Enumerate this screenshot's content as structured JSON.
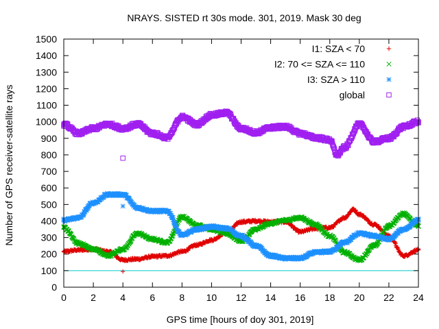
{
  "chart_data": {
    "type": "scatter",
    "title": "NRAYS. SISTED rt 30s mode. 301, 2019. Mask 30 deg",
    "xlabel": "GPS time [hours of doy 301, 2019]",
    "ylabel": "Number of GPS receiver-satellite rays",
    "xlim": [
      0,
      24
    ],
    "ylim": [
      0,
      1500
    ],
    "x_ticks": [
      "0",
      "2",
      "4",
      "6",
      "8",
      "10",
      "12",
      "14",
      "16",
      "18",
      "20",
      "22",
      "24"
    ],
    "y_ticks": [
      "0",
      "100",
      "200",
      "300",
      "400",
      "500",
      "600",
      "700",
      "800",
      "900",
      "1000",
      "1100",
      "1200",
      "1300",
      "1400",
      "1500"
    ],
    "legend_position": "top-right",
    "threshold_line": {
      "y": 100,
      "color": "#00c8c8"
    },
    "series": [
      {
        "name": "I1: SZA < 70",
        "marker": "plus",
        "color": "#e00000",
        "x": [
          0,
          1,
          2,
          3,
          4,
          5,
          6,
          7,
          8,
          9,
          10,
          11,
          12,
          13,
          14,
          15,
          16,
          17,
          18,
          19,
          19.6,
          20,
          21,
          22,
          23,
          24
        ],
        "y": [
          215,
          225,
          230,
          215,
          165,
          170,
          185,
          190,
          215,
          255,
          285,
          330,
          395,
          400,
          395,
          395,
          335,
          355,
          360,
          420,
          470,
          440,
          380,
          310,
          190,
          225
        ]
      },
      {
        "name": "I2: 70 <= SZA <= 110",
        "marker": "cross",
        "color": "#00b000",
        "x": [
          0,
          1,
          2,
          3,
          4,
          5,
          6,
          7,
          8,
          9,
          10,
          11,
          12,
          13,
          14,
          15,
          16,
          17,
          18,
          19,
          20,
          21,
          22,
          23,
          24
        ],
        "y": [
          360,
          265,
          230,
          190,
          230,
          325,
          290,
          270,
          425,
          375,
          350,
          325,
          280,
          350,
          385,
          405,
          420,
          380,
          310,
          210,
          165,
          250,
          370,
          445,
          370
        ]
      },
      {
        "name": "I3: SZA > 110",
        "marker": "star",
        "color": "#1e90ff",
        "x": [
          0,
          1,
          2,
          3,
          4,
          5,
          6,
          7,
          8,
          9,
          10,
          11,
          12,
          13,
          14,
          15,
          16,
          17,
          18,
          19,
          20,
          21,
          22,
          23,
          24
        ],
        "y": [
          405,
          420,
          510,
          560,
          560,
          480,
          460,
          460,
          315,
          350,
          365,
          355,
          310,
          250,
          190,
          175,
          175,
          210,
          215,
          270,
          325,
          310,
          290,
          350,
          405
        ]
      },
      {
        "name": "global",
        "marker": "square",
        "color": "#a020f0",
        "x": [
          0,
          1,
          2,
          3,
          4,
          5,
          6,
          7,
          8,
          9,
          10,
          11,
          12,
          13,
          14,
          15,
          16,
          17,
          18,
          18.5,
          19,
          20,
          21,
          22,
          23,
          24
        ],
        "y": [
          985,
          930,
          960,
          985,
          960,
          985,
          930,
          905,
          1030,
          985,
          1040,
          1055,
          960,
          935,
          965,
          970,
          930,
          905,
          890,
          800,
          845,
          985,
          880,
          900,
          970,
          1000
        ]
      }
    ],
    "outliers": [
      {
        "series": "global",
        "x": 4,
        "y": 780
      },
      {
        "series": "I1: SZA < 70",
        "x": 4,
        "y": 95
      },
      {
        "series": "I3: SZA > 110",
        "x": 4,
        "y": 490
      }
    ]
  }
}
